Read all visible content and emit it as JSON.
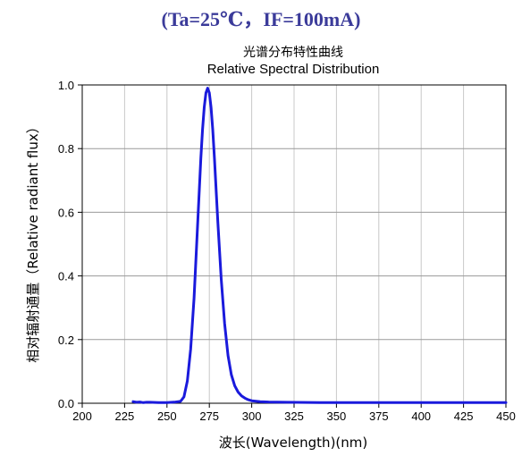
{
  "heading": "(Ta=25℃，IF=100mA)",
  "chart_data": {
    "type": "line",
    "title": "光谱分布特性曲线",
    "subtitle": "Relative Spectral Distribution",
    "xlabel": "波长(Wavelength)(nm)",
    "ylabel": "相对辐射通量（Relative radiant flux）",
    "xlim": [
      200,
      450
    ],
    "ylim": [
      0,
      1.0
    ],
    "xticks": [
      200,
      225,
      250,
      275,
      300,
      325,
      350,
      375,
      400,
      425,
      450
    ],
    "yticks": [
      0.0,
      0.2,
      0.4,
      0.6,
      0.8,
      1.0
    ],
    "xtick_labels": [
      "200",
      "225",
      "250",
      "275",
      "300",
      "325",
      "350",
      "375",
      "400",
      "425",
      "450"
    ],
    "ytick_labels": [
      "0.0",
      "0.2",
      "0.4",
      "0.6",
      "0.8",
      "1.0"
    ],
    "grid": true,
    "series": [
      {
        "color": "#1a1adc",
        "x": [
          230,
          232,
          234,
          236,
          238,
          240,
          245,
          250,
          255,
          258,
          260,
          262,
          264,
          266,
          268,
          270,
          271,
          272,
          273,
          274,
          275,
          276,
          277,
          278,
          280,
          282,
          284,
          286,
          288,
          290,
          292,
          294,
          296,
          298,
          300,
          305,
          310,
          320,
          340,
          360,
          380,
          400,
          420,
          440,
          450
        ],
        "y": [
          0.005,
          0.003,
          0.004,
          0.002,
          0.003,
          0.003,
          0.002,
          0.002,
          0.004,
          0.006,
          0.02,
          0.07,
          0.17,
          0.33,
          0.55,
          0.77,
          0.86,
          0.93,
          0.975,
          0.99,
          0.975,
          0.93,
          0.86,
          0.77,
          0.57,
          0.39,
          0.25,
          0.15,
          0.09,
          0.055,
          0.035,
          0.023,
          0.016,
          0.011,
          0.008,
          0.005,
          0.004,
          0.003,
          0.002,
          0.002,
          0.002,
          0.002,
          0.002,
          0.002,
          0.002
        ]
      }
    ]
  }
}
